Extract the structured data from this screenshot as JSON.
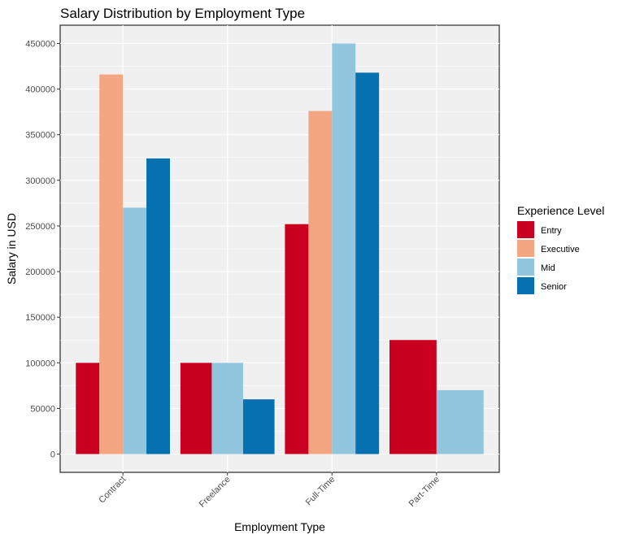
{
  "chart_data": {
    "type": "bar",
    "title": "Salary Distribution by Employment Type",
    "xlabel": "Employment Type",
    "ylabel": "Salary in USD",
    "categories": [
      "Contract",
      "Freelance",
      "Full-Time",
      "Part-Time"
    ],
    "ylim": [
      -20000,
      470000
    ],
    "yticks": [
      0,
      50000,
      100000,
      150000,
      200000,
      250000,
      300000,
      350000,
      400000,
      450000
    ],
    "yticks_labels": [
      "0",
      "50000",
      "100000",
      "150000",
      "200000",
      "250000",
      "300000",
      "350000",
      "400000",
      "450000"
    ],
    "grid": true,
    "legend_position": "right",
    "legend_title": "Experience Level",
    "series": [
      {
        "name": "Entry",
        "color": "#ca0020",
        "values": [
          100000,
          100000,
          252000,
          125000
        ]
      },
      {
        "name": "Executive",
        "color": "#f4a582",
        "values": [
          416000,
          null,
          376000,
          null
        ]
      },
      {
        "name": "Mid",
        "color": "#92c5de",
        "values": [
          270000,
          100000,
          450000,
          70000
        ]
      },
      {
        "name": "Senior",
        "color": "#0571b0",
        "values": [
          324000,
          60000,
          418000,
          null
        ]
      }
    ]
  }
}
